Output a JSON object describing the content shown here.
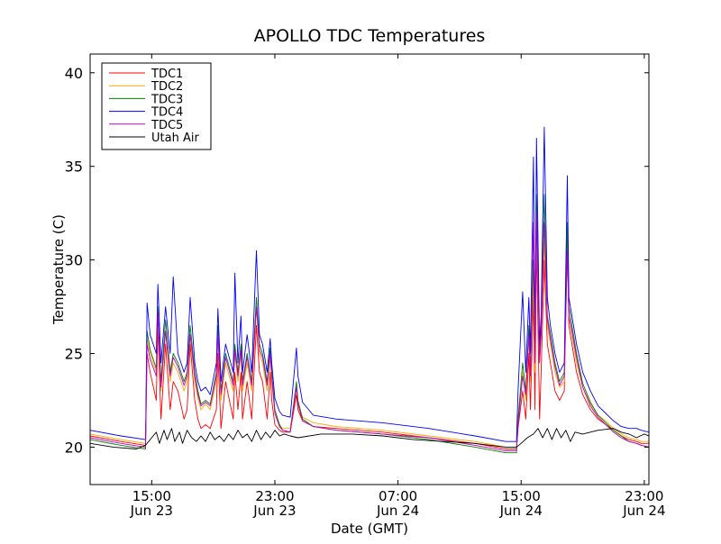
{
  "chart_data": {
    "type": "line",
    "title": "APOLLO TDC Temperatures",
    "xlabel": "Date (GMT)",
    "ylabel": "Temperature (C)",
    "xlim": [
      11.0,
      47.3
    ],
    "ylim": [
      18,
      41
    ],
    "x_unit": "hours since Jun 23 00:00 GMT",
    "y_ticks": [
      {
        "value": 20,
        "label": "20"
      },
      {
        "value": 25,
        "label": "25"
      },
      {
        "value": 30,
        "label": "30"
      },
      {
        "value": 35,
        "label": "35"
      },
      {
        "value": 40,
        "label": "40"
      }
    ],
    "x_ticks": [
      {
        "value": 15,
        "time": "15:00",
        "date": "Jun 23"
      },
      {
        "value": 23,
        "time": "23:00",
        "date": "Jun 23"
      },
      {
        "value": 31,
        "time": "07:00",
        "date": "Jun 24"
      },
      {
        "value": 39,
        "time": "15:00",
        "date": "Jun 24"
      },
      {
        "value": 47,
        "time": "23:00",
        "date": "Jun 24"
      }
    ],
    "legend_position": "top-left",
    "series": [
      {
        "name": "TDC1",
        "color": "#ff0000",
        "x": [
          11.0,
          13.0,
          14.6,
          14.7,
          14.9,
          15.3,
          15.4,
          15.6,
          15.9,
          16.2,
          16.4,
          16.7,
          17.1,
          17.3,
          17.5,
          17.8,
          18.0,
          18.2,
          18.5,
          18.8,
          19.2,
          19.3,
          19.5,
          19.8,
          20.3,
          20.4,
          20.6,
          20.8,
          20.9,
          21.2,
          21.5,
          21.8,
          22.0,
          22.2,
          22.5,
          22.7,
          22.8,
          23.0,
          23.3,
          23.5,
          24.0,
          24.4,
          24.5,
          24.8,
          25.5,
          27.0,
          30.0,
          33.0,
          36.0,
          38.0,
          38.7,
          38.8,
          39.1,
          39.3,
          39.5,
          39.6,
          39.8,
          39.9,
          40.0,
          40.2,
          40.3,
          40.5,
          40.7,
          40.9,
          41.2,
          41.5,
          41.8,
          42.0,
          42.1,
          42.3,
          42.6,
          43.0,
          43.5,
          44.0,
          44.5,
          45.0,
          45.5,
          46.0,
          46.5,
          46.8,
          47.3
        ],
        "y": [
          20.6,
          20.3,
          20.1,
          25.0,
          24.0,
          22.5,
          26.5,
          21.5,
          25.5,
          22.0,
          23.5,
          23.0,
          21.5,
          22.0,
          25.5,
          22.5,
          21.5,
          21.0,
          21.2,
          21.0,
          22.0,
          25.0,
          21.0,
          23.5,
          21.5,
          24.0,
          22.0,
          24.0,
          21.5,
          23.5,
          21.5,
          26.5,
          24.0,
          23.5,
          21.5,
          24.0,
          22.5,
          21.2,
          20.9,
          20.8,
          20.8,
          22.8,
          22.0,
          21.4,
          21.1,
          21.0,
          20.8,
          20.5,
          20.2,
          19.9,
          19.9,
          21.0,
          23.0,
          21.5,
          25.0,
          22.0,
          28.0,
          22.0,
          31.0,
          21.5,
          24.0,
          30.0,
          25.5,
          24.5,
          23.0,
          22.5,
          23.0,
          31.0,
          26.5,
          25.5,
          24.0,
          22.8,
          22.0,
          21.5,
          21.2,
          20.9,
          20.6,
          20.4,
          20.3,
          20.2,
          20.2
        ]
      },
      {
        "name": "TDC2",
        "color": "#ffa500",
        "x": [
          11.0,
          13.0,
          14.6,
          14.7,
          14.9,
          15.3,
          15.4,
          15.6,
          15.9,
          16.2,
          16.4,
          16.7,
          17.1,
          17.3,
          17.5,
          17.8,
          18.0,
          18.2,
          18.5,
          18.8,
          19.2,
          19.3,
          19.5,
          19.8,
          20.3,
          20.4,
          20.6,
          20.8,
          20.9,
          21.2,
          21.5,
          21.8,
          22.0,
          22.2,
          22.5,
          22.7,
          22.8,
          23.0,
          23.3,
          23.5,
          24.0,
          24.4,
          24.5,
          24.8,
          25.5,
          27.0,
          30.0,
          33.0,
          36.0,
          38.0,
          38.7,
          38.8,
          39.1,
          39.3,
          39.5,
          39.6,
          39.8,
          39.9,
          40.0,
          40.2,
          40.3,
          40.5,
          40.7,
          40.9,
          41.2,
          41.5,
          41.8,
          42.0,
          42.1,
          42.3,
          42.6,
          43.0,
          43.5,
          44.0,
          44.5,
          45.0,
          45.5,
          46.0,
          46.5,
          46.8,
          47.3
        ],
        "y": [
          20.7,
          20.4,
          20.2,
          25.8,
          25.0,
          24.0,
          27.0,
          23.0,
          26.2,
          23.5,
          24.5,
          24.0,
          23.0,
          23.5,
          26.0,
          23.5,
          22.6,
          22.0,
          22.3,
          22.0,
          23.5,
          26.0,
          22.5,
          24.5,
          23.0,
          25.0,
          23.5,
          25.0,
          23.0,
          24.5,
          23.0,
          27.5,
          25.0,
          24.5,
          23.0,
          24.8,
          23.5,
          21.8,
          21.2,
          21.0,
          21.0,
          23.2,
          22.4,
          21.6,
          21.3,
          21.1,
          20.9,
          20.6,
          20.3,
          20.0,
          20.0,
          21.5,
          24.0,
          22.5,
          26.0,
          23.5,
          29.0,
          24.0,
          32.0,
          24.5,
          26.0,
          31.0,
          26.5,
          25.5,
          24.0,
          23.2,
          23.5,
          31.5,
          27.0,
          26.0,
          24.5,
          23.2,
          22.3,
          21.7,
          21.4,
          21.0,
          20.7,
          20.5,
          20.4,
          20.3,
          20.3
        ]
      },
      {
        "name": "TDC3",
        "color": "#008000",
        "x": [
          11.0,
          13.0,
          14.6,
          14.7,
          14.9,
          15.3,
          15.4,
          15.6,
          15.9,
          16.2,
          16.4,
          16.7,
          17.1,
          17.3,
          17.5,
          17.8,
          18.0,
          18.2,
          18.5,
          18.8,
          19.2,
          19.3,
          19.5,
          19.8,
          20.3,
          20.4,
          20.6,
          20.8,
          20.9,
          21.2,
          21.5,
          21.8,
          22.0,
          22.2,
          22.5,
          22.7,
          22.8,
          23.0,
          23.3,
          23.5,
          24.0,
          24.4,
          24.5,
          24.8,
          25.5,
          27.0,
          30.0,
          33.0,
          36.0,
          38.0,
          38.7,
          38.8,
          39.1,
          39.3,
          39.5,
          39.6,
          39.8,
          39.9,
          40.0,
          40.2,
          40.3,
          40.5,
          40.7,
          40.9,
          41.2,
          41.5,
          41.8,
          42.0,
          42.1,
          42.3,
          42.6,
          43.0,
          43.5,
          44.0,
          44.5,
          45.0,
          45.5,
          46.0,
          46.5,
          46.8,
          47.3
        ],
        "y": [
          20.4,
          20.1,
          19.9,
          26.2,
          25.2,
          24.2,
          27.5,
          23.5,
          26.8,
          24.0,
          25.0,
          24.5,
          23.5,
          24.0,
          26.5,
          24.0,
          23.0,
          22.3,
          22.5,
          22.3,
          24.0,
          26.5,
          23.0,
          25.0,
          23.5,
          25.5,
          24.0,
          25.5,
          23.5,
          25.0,
          23.5,
          28.0,
          25.5,
          25.0,
          23.5,
          25.3,
          24.0,
          22.0,
          21.2,
          20.9,
          20.8,
          23.5,
          22.5,
          21.5,
          21.1,
          20.9,
          20.7,
          20.4,
          20.0,
          19.7,
          19.7,
          21.5,
          24.5,
          23.0,
          26.5,
          24.0,
          30.0,
          25.0,
          33.5,
          25.0,
          26.5,
          33.5,
          27.0,
          26.0,
          24.5,
          23.5,
          24.0,
          32.0,
          27.5,
          26.5,
          25.0,
          23.4,
          22.4,
          21.7,
          21.3,
          20.9,
          20.6,
          20.3,
          20.2,
          20.1,
          20.0
        ]
      },
      {
        "name": "TDC4",
        "color": "#0000ff",
        "x": [
          11.0,
          13.0,
          14.6,
          14.7,
          14.9,
          15.3,
          15.4,
          15.6,
          15.9,
          16.2,
          16.4,
          16.7,
          17.1,
          17.3,
          17.5,
          17.8,
          18.0,
          18.2,
          18.5,
          18.8,
          19.2,
          19.3,
          19.5,
          19.8,
          20.3,
          20.4,
          20.6,
          20.8,
          20.9,
          21.2,
          21.5,
          21.8,
          22.0,
          22.2,
          22.5,
          22.7,
          22.8,
          23.0,
          23.3,
          23.5,
          24.0,
          24.4,
          24.5,
          24.8,
          25.5,
          27.0,
          30.0,
          33.0,
          36.0,
          38.0,
          38.7,
          38.8,
          39.1,
          39.3,
          39.5,
          39.6,
          39.8,
          39.9,
          40.0,
          40.2,
          40.3,
          40.5,
          40.7,
          40.9,
          41.2,
          41.5,
          41.8,
          42.0,
          42.1,
          42.3,
          42.6,
          43.0,
          43.5,
          44.0,
          44.5,
          45.0,
          45.5,
          46.0,
          46.5,
          46.8,
          47.3
        ],
        "y": [
          20.9,
          20.6,
          20.4,
          27.7,
          26.0,
          25.0,
          28.7,
          24.5,
          27.5,
          25.0,
          29.1,
          25.0,
          24.0,
          24.5,
          28.0,
          24.5,
          23.5,
          23.0,
          23.2,
          22.8,
          24.5,
          27.4,
          23.5,
          25.5,
          24.0,
          29.3,
          24.5,
          27.0,
          24.0,
          26.0,
          24.0,
          30.5,
          26.0,
          25.5,
          24.0,
          25.8,
          24.5,
          22.6,
          21.9,
          21.7,
          21.6,
          25.3,
          23.8,
          22.4,
          21.7,
          21.5,
          21.3,
          21.0,
          20.6,
          20.3,
          20.3,
          23.0,
          28.3,
          24.0,
          28.0,
          25.0,
          35.5,
          25.5,
          36.5,
          25.5,
          27.0,
          37.1,
          28.0,
          26.5,
          25.0,
          24.0,
          24.5,
          34.5,
          28.0,
          27.0,
          25.5,
          24.0,
          23.0,
          22.2,
          21.8,
          21.4,
          21.1,
          21.0,
          21.0,
          20.9,
          20.8
        ]
      },
      {
        "name": "TDC5",
        "color": "#bf00bf",
        "x": [
          11.0,
          13.0,
          14.6,
          14.7,
          14.9,
          15.3,
          15.4,
          15.6,
          15.9,
          16.2,
          16.4,
          16.7,
          17.1,
          17.3,
          17.5,
          17.8,
          18.0,
          18.2,
          18.5,
          18.8,
          19.2,
          19.3,
          19.5,
          19.8,
          20.3,
          20.4,
          20.6,
          20.8,
          20.9,
          21.2,
          21.5,
          21.8,
          22.0,
          22.2,
          22.5,
          22.7,
          22.8,
          23.0,
          23.3,
          23.5,
          24.0,
          24.4,
          24.5,
          24.8,
          25.5,
          27.0,
          30.0,
          33.0,
          36.0,
          38.0,
          38.7,
          38.8,
          39.1,
          39.3,
          39.5,
          39.6,
          39.8,
          39.9,
          40.0,
          40.2,
          40.3,
          40.5,
          40.7,
          40.9,
          41.2,
          41.5,
          41.8,
          42.0,
          42.1,
          42.3,
          42.6,
          43.0,
          43.5,
          44.0,
          44.5,
          45.0,
          45.5,
          46.0,
          46.5,
          46.8,
          47.3
        ],
        "y": [
          20.5,
          20.2,
          20.0,
          25.5,
          24.7,
          23.8,
          27.2,
          23.2,
          26.2,
          23.8,
          24.8,
          24.3,
          23.3,
          23.8,
          26.0,
          23.8,
          22.8,
          22.2,
          22.4,
          22.2,
          23.8,
          26.0,
          22.8,
          24.8,
          23.3,
          25.2,
          23.8,
          25.2,
          23.3,
          24.8,
          23.3,
          27.5,
          25.2,
          24.8,
          23.3,
          25.0,
          23.8,
          21.8,
          21.1,
          20.9,
          20.8,
          23.2,
          22.3,
          21.4,
          21.1,
          20.9,
          20.7,
          20.5,
          20.1,
          19.8,
          19.8,
          21.2,
          23.8,
          22.8,
          26.0,
          23.8,
          32.0,
          24.5,
          32.5,
          24.5,
          26.0,
          32.0,
          26.8,
          25.8,
          24.3,
          23.3,
          23.8,
          30.5,
          27.0,
          26.2,
          24.8,
          23.2,
          22.2,
          21.6,
          21.2,
          20.8,
          20.5,
          20.3,
          20.2,
          20.1,
          20.0
        ]
      },
      {
        "name": "Utah Air",
        "color": "#000000",
        "x": [
          11.0,
          12.5,
          14.0,
          14.6,
          14.8,
          15.0,
          15.3,
          15.5,
          15.8,
          16.0,
          16.3,
          16.5,
          16.8,
          17.0,
          17.3,
          17.6,
          17.9,
          18.2,
          18.5,
          18.8,
          19.1,
          19.4,
          19.7,
          20.0,
          20.3,
          20.6,
          20.9,
          21.2,
          21.5,
          21.8,
          22.1,
          22.4,
          22.7,
          23.0,
          23.3,
          23.6,
          24.0,
          24.5,
          26.0,
          28.0,
          30.0,
          32.0,
          34.0,
          36.0,
          38.0,
          38.7,
          39.0,
          39.4,
          39.8,
          40.1,
          40.4,
          40.7,
          41.0,
          41.3,
          41.6,
          41.9,
          42.2,
          42.5,
          43.0,
          43.5,
          44.0,
          45.0,
          45.5,
          46.0,
          46.5,
          47.0,
          47.3
        ],
        "y": [
          20.2,
          20.0,
          19.9,
          20.1,
          20.3,
          20.5,
          20.8,
          20.2,
          20.9,
          20.4,
          21.0,
          20.3,
          20.8,
          20.2,
          20.9,
          20.5,
          20.3,
          20.6,
          20.3,
          20.8,
          20.4,
          20.6,
          20.3,
          20.7,
          20.4,
          20.9,
          20.5,
          20.7,
          20.3,
          20.9,
          20.4,
          20.8,
          20.5,
          20.9,
          20.6,
          20.7,
          20.6,
          20.5,
          20.7,
          20.7,
          20.6,
          20.4,
          20.3,
          20.2,
          20.0,
          20.0,
          20.2,
          20.5,
          20.7,
          21.0,
          20.5,
          21.0,
          20.4,
          21.0,
          20.5,
          20.9,
          20.3,
          20.8,
          20.7,
          20.8,
          20.9,
          21.0,
          20.8,
          20.7,
          20.5,
          20.7,
          20.6
        ]
      }
    ]
  }
}
